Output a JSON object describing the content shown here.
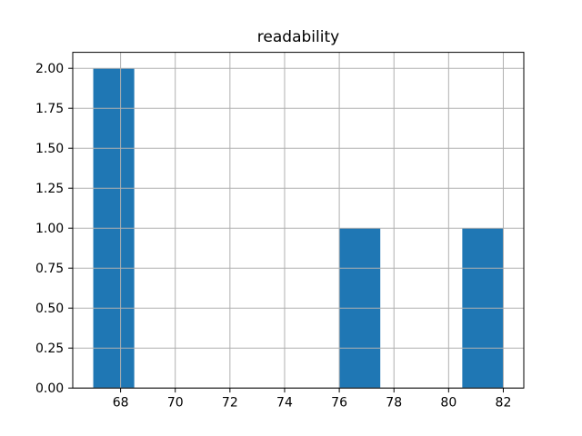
{
  "chart_data": {
    "type": "bar",
    "subtype": "histogram",
    "title": "readability",
    "bin_edges": [
      67,
      68.5,
      70,
      71.5,
      73,
      74.5,
      76,
      77.5,
      79,
      80.5,
      82
    ],
    "counts": [
      2,
      0,
      0,
      0,
      0,
      0,
      1,
      0,
      0,
      1
    ],
    "xlim": [
      66.25,
      82.75
    ],
    "ylim": [
      0,
      2.1
    ],
    "xticks": [
      68,
      70,
      72,
      74,
      76,
      78,
      80,
      82
    ],
    "xtick_labels": [
      "68",
      "70",
      "72",
      "74",
      "76",
      "78",
      "80",
      "82"
    ],
    "yticks": [
      0,
      0.25,
      0.5,
      0.75,
      1,
      1.25,
      1.5,
      1.75,
      2
    ],
    "ytick_labels": [
      "0.00",
      "0.25",
      "0.50",
      "0.75",
      "1.00",
      "1.25",
      "1.50",
      "1.75",
      "2.00"
    ],
    "bar_color": "#1f77b4",
    "grid_color": "#b0b0b0",
    "spine_color": "#000000",
    "text_color": "#000000",
    "grid": true,
    "grid_above_bars": true,
    "legend": false,
    "xlabel": "",
    "ylabel": ""
  }
}
